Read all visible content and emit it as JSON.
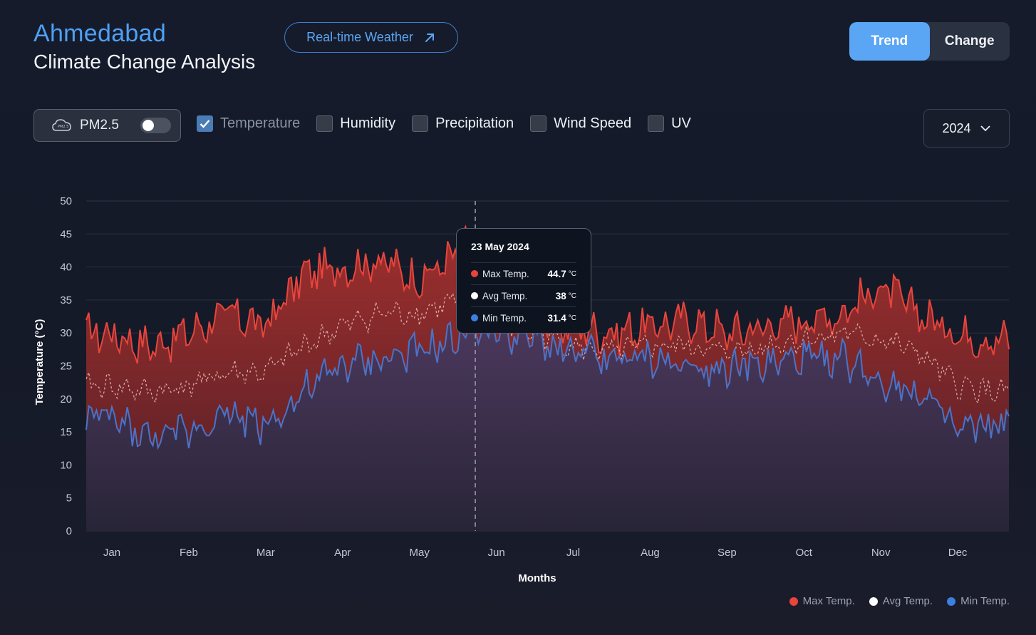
{
  "header": {
    "city": "Ahmedabad",
    "subtitle": "Climate Change Analysis",
    "realtime_label": "Real-time Weather"
  },
  "view_toggle": {
    "trend_label": "Trend",
    "change_label": "Change",
    "selected": "Trend"
  },
  "filters": {
    "pm25_label": "PM2.5",
    "pm25_enabled": false,
    "options": [
      {
        "label": "Temperature",
        "checked": true
      },
      {
        "label": "Humidity",
        "checked": false
      },
      {
        "label": "Precipitation",
        "checked": false
      },
      {
        "label": "Wind Speed",
        "checked": false
      },
      {
        "label": "UV",
        "checked": false
      }
    ]
  },
  "year_select": {
    "value": "2024"
  },
  "tooltip": {
    "date": "23 May 2024",
    "rows": [
      {
        "name": "Max Temp.",
        "value": "44.7",
        "unit": "°C",
        "color": "#e8453c"
      },
      {
        "name": "Avg Temp.",
        "value": "38",
        "unit": "°C",
        "color": "#ffffff"
      },
      {
        "name": "Min Temp.",
        "value": "31.4",
        "unit": "°C",
        "color": "#3d7fe0"
      }
    ]
  },
  "legend": [
    {
      "label": "Max Temp.",
      "color": "#e8453c"
    },
    {
      "label": "Avg Temp.",
      "color": "#ffffff"
    },
    {
      "label": "Min Temp.",
      "color": "#3d7fe0"
    }
  ],
  "colors": {
    "max": "#e8453c",
    "avg": "#e9c0b8",
    "min": "#4a73c9",
    "accent": "#5aa6f5"
  },
  "chart_data": {
    "type": "area",
    "xlabel": "Months",
    "ylabel": "Temperature (°C)",
    "ylim": [
      0,
      50
    ],
    "yticks": [
      0,
      5,
      10,
      15,
      20,
      25,
      30,
      35,
      40,
      45,
      50
    ],
    "xticks": [
      "Jan",
      "Feb",
      "Mar",
      "Apr",
      "May",
      "Jun",
      "Jul",
      "Aug",
      "Sep",
      "Oct",
      "Nov",
      "Dec"
    ],
    "grid": true,
    "legend_position": "bottom-right",
    "highlight": {
      "month_index": 4.73,
      "max": 44.7,
      "avg": 38,
      "min": 31.4
    },
    "series": [
      {
        "name": "Max Temp.",
        "month_pos": [
          0,
          0.5,
          1,
          1.5,
          2,
          2.5,
          3,
          3.5,
          4,
          4.5,
          4.73,
          5,
          5.5,
          6,
          6.5,
          7,
          7.5,
          8,
          8.5,
          9,
          9.5,
          10,
          10.5,
          11,
          11.5
        ],
        "values": [
          30,
          28,
          30,
          33,
          31,
          39,
          40,
          41,
          38,
          42,
          44.7,
          38,
          32,
          31,
          30,
          31,
          32,
          30,
          31,
          32,
          33,
          37,
          33,
          30,
          29
        ]
      },
      {
        "name": "Avg Temp.",
        "month_pos": [
          0,
          0.5,
          1,
          1.5,
          2,
          2.5,
          3,
          3.5,
          4,
          4.5,
          4.73,
          5,
          5.5,
          6,
          6.5,
          7,
          7.5,
          8,
          8.5,
          9,
          9.5,
          10,
          10.5,
          11,
          11.5
        ],
        "values": [
          22,
          21,
          22,
          24,
          24,
          28,
          31,
          33,
          33,
          35,
          38,
          32,
          30,
          28,
          27,
          28,
          28,
          27,
          28,
          29,
          30,
          29,
          27,
          22,
          21
        ]
      },
      {
        "name": "Min Temp.",
        "month_pos": [
          0,
          0.5,
          1,
          1.5,
          2,
          2.5,
          3,
          3.5,
          4,
          4.5,
          4.73,
          5,
          5.5,
          6,
          6.5,
          7,
          7.5,
          8,
          8.5,
          9,
          9.5,
          10,
          10.5,
          11,
          11.5
        ],
        "values": [
          17,
          14,
          15,
          18,
          16,
          21,
          25,
          26,
          27,
          29,
          31.4,
          30,
          29,
          27,
          26,
          26,
          25,
          25,
          25,
          26,
          26,
          23,
          21,
          15,
          16
        ]
      }
    ]
  }
}
